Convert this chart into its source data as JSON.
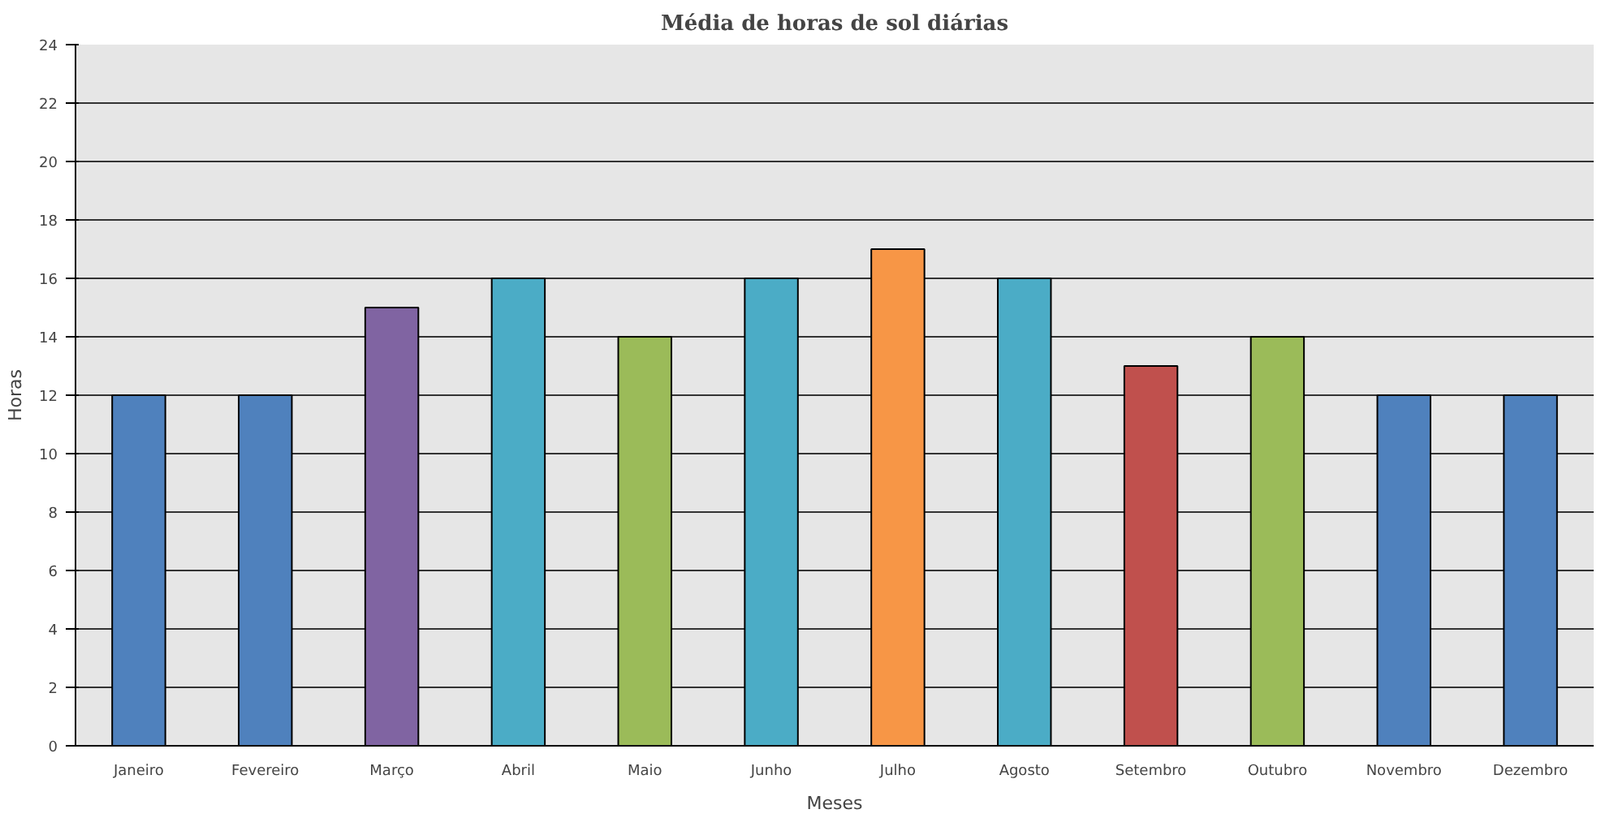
{
  "chart_data": {
    "type": "bar",
    "title": "Média de horas de sol diárias",
    "xlabel": "Meses",
    "ylabel": "Horas",
    "categories": [
      "Janeiro",
      "Fevereiro",
      "Março",
      "Abril",
      "Maio",
      "Junho",
      "Julho",
      "Agosto",
      "Setembro",
      "Outubro",
      "Novembro",
      "Dezembro"
    ],
    "values": [
      12,
      12,
      15,
      16,
      14,
      16,
      17,
      16,
      13,
      14,
      12,
      12
    ],
    "colors": [
      "#4f81bd",
      "#4f81bd",
      "#8064a2",
      "#4bacc6",
      "#9bbb59",
      "#4bacc6",
      "#f79646",
      "#4bacc6",
      "#c0504d",
      "#9bbb59",
      "#4f81bd",
      "#4f81bd"
    ],
    "ylim": [
      0,
      24
    ],
    "yticks": [
      0,
      2,
      4,
      6,
      8,
      10,
      12,
      14,
      16,
      18,
      20,
      22,
      24
    ],
    "grid": "y"
  }
}
